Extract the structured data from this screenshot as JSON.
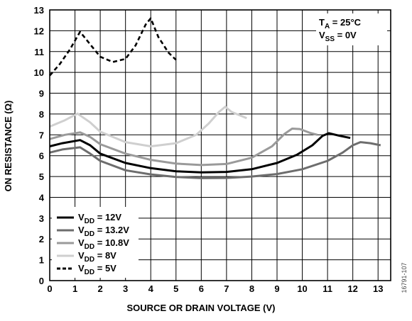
{
  "chart_data": {
    "type": "line",
    "xlabel": "SOURCE OR DRAIN VOLTAGE (V)",
    "ylabel": "ON RESISTANCE (Ω)",
    "xlim": [
      0,
      13.5
    ],
    "ylim": [
      0,
      13
    ],
    "xticks": [
      "0",
      "1",
      "2",
      "3",
      "4",
      "5",
      "6",
      "7",
      "8",
      "9",
      "10",
      "11",
      "12",
      "13"
    ],
    "yticks": [
      "0",
      "1",
      "2",
      "3",
      "4",
      "5",
      "6",
      "7",
      "8",
      "9",
      "10",
      "11",
      "12",
      "13"
    ],
    "grid": true,
    "legend_position": "bottom-left",
    "annotation": {
      "line1_main": "T",
      "line1_sub": "A",
      "line1_rest": " = 25°C",
      "line2_main": "V",
      "line2_sub": "SS",
      "line2_rest": " = 0V"
    },
    "figure_id": "16791-107",
    "series": [
      {
        "label_main": "V",
        "label_sub": "DD",
        "label_rest": " = 12V",
        "color": "#000000",
        "dash": false,
        "points": [
          [
            0,
            6.45
          ],
          [
            0.5,
            6.6
          ],
          [
            1.2,
            6.75
          ],
          [
            1.6,
            6.5
          ],
          [
            2,
            6.1
          ],
          [
            3,
            5.65
          ],
          [
            4,
            5.4
          ],
          [
            5,
            5.25
          ],
          [
            6,
            5.2
          ],
          [
            7,
            5.22
          ],
          [
            8,
            5.35
          ],
          [
            9,
            5.65
          ],
          [
            9.8,
            6.05
          ],
          [
            10.4,
            6.5
          ],
          [
            10.8,
            6.95
          ],
          [
            11.05,
            7.08
          ],
          [
            11.5,
            6.95
          ],
          [
            11.9,
            6.85
          ]
        ]
      },
      {
        "label_main": "V",
        "label_sub": "DD",
        "label_rest": " = 13.2V",
        "color": "#6d6d6d",
        "dash": false,
        "points": [
          [
            0,
            6.15
          ],
          [
            0.5,
            6.3
          ],
          [
            1.2,
            6.4
          ],
          [
            1.6,
            6.1
          ],
          [
            2,
            5.75
          ],
          [
            3,
            5.3
          ],
          [
            4,
            5.1
          ],
          [
            5,
            4.98
          ],
          [
            6,
            4.92
          ],
          [
            7,
            4.93
          ],
          [
            8,
            5.0
          ],
          [
            9,
            5.12
          ],
          [
            10,
            5.35
          ],
          [
            11,
            5.75
          ],
          [
            11.6,
            6.15
          ],
          [
            12,
            6.5
          ],
          [
            12.3,
            6.65
          ],
          [
            12.7,
            6.6
          ],
          [
            13.1,
            6.5
          ]
        ]
      },
      {
        "label_main": "V",
        "label_sub": "DD",
        "label_rest": " = 10.8V",
        "color": "#9a9a9a",
        "dash": false,
        "points": [
          [
            0,
            6.8
          ],
          [
            0.6,
            7.0
          ],
          [
            1.2,
            7.12
          ],
          [
            1.6,
            6.9
          ],
          [
            2,
            6.55
          ],
          [
            3,
            6.1
          ],
          [
            4,
            5.8
          ],
          [
            5,
            5.62
          ],
          [
            6,
            5.55
          ],
          [
            7,
            5.6
          ],
          [
            8,
            5.9
          ],
          [
            8.8,
            6.45
          ],
          [
            9.3,
            7.05
          ],
          [
            9.6,
            7.3
          ],
          [
            9.9,
            7.28
          ],
          [
            10.3,
            7.1
          ],
          [
            10.6,
            7.0
          ]
        ]
      },
      {
        "label_main": "V",
        "label_sub": "DD",
        "label_rest": " = 8V",
        "color": "#cfcfcf",
        "dash": false,
        "points": [
          [
            0,
            7.4
          ],
          [
            0.6,
            7.7
          ],
          [
            1.1,
            8.02
          ],
          [
            1.6,
            7.6
          ],
          [
            2,
            7.15
          ],
          [
            3,
            6.65
          ],
          [
            4,
            6.45
          ],
          [
            5,
            6.6
          ],
          [
            5.8,
            7.0
          ],
          [
            6.3,
            7.55
          ],
          [
            6.7,
            8.1
          ],
          [
            6.95,
            8.35
          ],
          [
            7.2,
            8.1
          ],
          [
            7.8,
            7.8
          ]
        ]
      },
      {
        "label_main": "V",
        "label_sub": "DD",
        "label_rest": " = 5V",
        "color": "#000000",
        "dash": true,
        "points": [
          [
            0,
            9.85
          ],
          [
            0.4,
            10.4
          ],
          [
            0.8,
            11.1
          ],
          [
            1.2,
            11.95
          ],
          [
            1.6,
            11.35
          ],
          [
            2,
            10.75
          ],
          [
            2.5,
            10.5
          ],
          [
            3,
            10.65
          ],
          [
            3.4,
            11.3
          ],
          [
            3.8,
            12.3
          ],
          [
            4,
            12.6
          ],
          [
            4.3,
            11.7
          ],
          [
            4.7,
            10.95
          ],
          [
            5,
            10.6
          ]
        ]
      }
    ]
  }
}
